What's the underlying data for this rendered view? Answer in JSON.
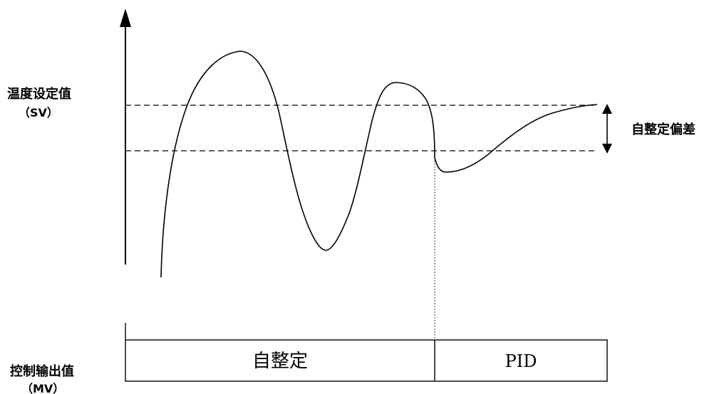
{
  "labels": {
    "sv_title": "温度设定值",
    "sv_abbr": "（SV）",
    "deviation": "自整定偏差",
    "mv_title": "控制输出值",
    "mv_abbr": "（MV）"
  },
  "phases": {
    "autotune": "自整定",
    "pid": "PID"
  },
  "colors": {
    "line": "#000000",
    "background": "#ffffff"
  }
}
